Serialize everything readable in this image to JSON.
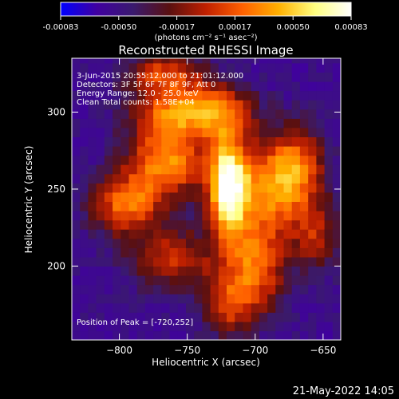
{
  "footer": {
    "timestamp": "21-May-2022 14:05"
  },
  "colorbar": {
    "ticks": [
      "-0.00083",
      "-0.00050",
      "-0.00017",
      "0.00017",
      "0.00050",
      "0.00083"
    ],
    "units_label": "(photons cm⁻² s⁻¹ asec⁻²)",
    "colormap": [
      "#0000ff",
      "#4000a0",
      "#3a1a6e",
      "#5a1010",
      "#c02000",
      "#ff6000",
      "#ffb000",
      "#ffff80",
      "#ffffff"
    ]
  },
  "chart_data": {
    "type": "heatmap",
    "title": "Reconstructed RHESSI Image",
    "xlabel": "Heliocentric X (arcsec)",
    "ylabel": "Heliocentric Y (arcsec)",
    "xlim": [
      -835,
      -637
    ],
    "ylim": [
      152,
      335
    ],
    "x_ticks": [
      -800,
      -750,
      -700,
      -650
    ],
    "y_ticks": [
      200,
      250,
      300
    ],
    "x_tick_labels": [
      "−800",
      "−750",
      "−700",
      "−650"
    ],
    "y_tick_labels": [
      "200",
      "250",
      "300"
    ],
    "annotations": [
      "3-Jun-2015 20:55:12.000 to 21:01:12.000",
      "Detectors: 3F 5F 6F 7F 8F 9F, Att 0",
      "Energy Range: 12.0 - 25.0 keV",
      "Clean     Total counts: 1.58E+04"
    ],
    "peak_label": "Position of Peak = [-720,252]",
    "peak": {
      "x": -720,
      "y": 252
    },
    "value_range": [
      -0.00083,
      0.00083
    ],
    "sources": [
      {
        "x": -720,
        "y": 252,
        "sx": 10,
        "sy": 22,
        "amp": 1.0
      },
      {
        "x": -765,
        "y": 268,
        "sx": 20,
        "sy": 16,
        "amp": 0.62
      },
      {
        "x": -795,
        "y": 240,
        "sx": 18,
        "sy": 14,
        "amp": 0.55
      },
      {
        "x": -760,
        "y": 300,
        "sx": 22,
        "sy": 12,
        "amp": 0.5
      },
      {
        "x": -725,
        "y": 300,
        "sx": 18,
        "sy": 12,
        "amp": 0.45
      },
      {
        "x": -690,
        "y": 250,
        "sx": 18,
        "sy": 22,
        "amp": 0.55
      },
      {
        "x": -668,
        "y": 265,
        "sx": 14,
        "sy": 18,
        "amp": 0.45
      },
      {
        "x": -700,
        "y": 200,
        "sx": 16,
        "sy": 20,
        "amp": 0.52
      },
      {
        "x": -760,
        "y": 205,
        "sx": 22,
        "sy": 14,
        "amp": 0.4
      },
      {
        "x": -720,
        "y": 175,
        "sx": 14,
        "sy": 14,
        "amp": 0.4
      },
      {
        "x": -765,
        "y": 325,
        "sx": 20,
        "sy": 10,
        "amp": 0.45
      },
      {
        "x": -655,
        "y": 220,
        "sx": 12,
        "sy": 16,
        "amp": 0.35
      }
    ]
  }
}
